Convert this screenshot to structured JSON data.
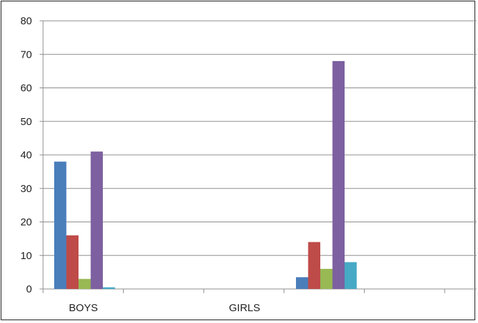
{
  "chart_data": {
    "type": "bar",
    "categories": [
      "BOYS",
      "GIRLS"
    ],
    "series": [
      {
        "color": "#4a7ebb",
        "values": [
          38,
          3.5
        ]
      },
      {
        "color": "#be4b48",
        "values": [
          16,
          14
        ]
      },
      {
        "color": "#98b954",
        "values": [
          3,
          6
        ]
      },
      {
        "color": "#7d60a0",
        "values": [
          41,
          68
        ]
      },
      {
        "color": "#46aac5",
        "values": [
          0.5,
          8
        ]
      }
    ],
    "xlabel": "",
    "ylabel": "",
    "ylim": [
      0,
      80
    ],
    "yticks": [
      "0",
      "10",
      "20",
      "30",
      "40",
      "50",
      "60",
      "70",
      "80"
    ],
    "grid": true,
    "legend": "none"
  }
}
